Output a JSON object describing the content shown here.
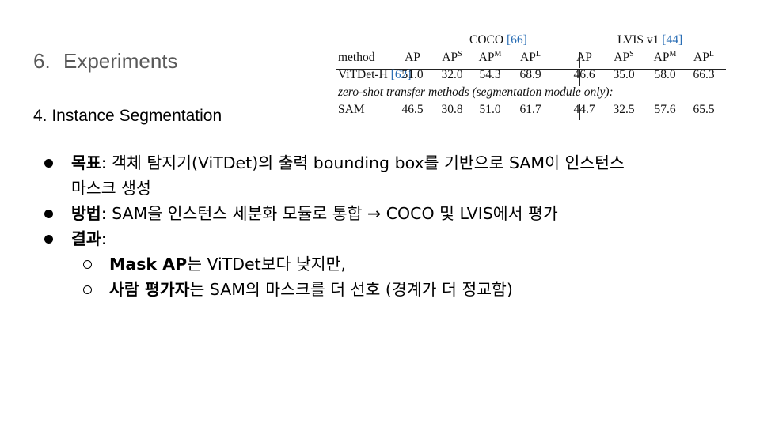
{
  "heading": {
    "number": "6.",
    "title": "Experiments"
  },
  "subheading": "4. Instance Segmentation",
  "table": {
    "group_coco": "COCO",
    "group_coco_cite": "[66]",
    "group_lvis": "LVIS v1",
    "group_lvis_cite": "[44]",
    "method_header": "method",
    "metric_base": "AP",
    "metric_sups": [
      "",
      "S",
      "M",
      "L"
    ],
    "rows": [
      {
        "method": "ViTDet-H",
        "cite": "[62]",
        "coco": [
          "51.0",
          "32.0",
          "54.3",
          "68.9"
        ],
        "lvis": [
          "46.6",
          "35.0",
          "58.0",
          "66.3"
        ]
      }
    ],
    "section_note": "zero-shot transfer methods (segmentation module only):",
    "zero_shot_rows": [
      {
        "method": "SAM",
        "coco": [
          "46.5",
          "30.8",
          "51.0",
          "61.7"
        ],
        "lvis": [
          "44.7",
          "32.5",
          "57.6",
          "65.5"
        ]
      }
    ]
  },
  "bullets": {
    "goal_label": "목표",
    "goal_text": ": 객체 탐지기(ViTDet)의 출력 bounding box를 기반으로 SAM이 인스턴스",
    "goal_text_cont": "마스크 생성",
    "method_label": "방법",
    "method_text": ": SAM을 인스턴스 세분화 모듈로 통합 → COCO 및 LVIS에서 평가",
    "result_label": "결과",
    "result_text": ":",
    "sub1_label": "Mask AP",
    "sub1_text": "는 ViTDet보다 낮지만,",
    "sub2_label": "사람 평가자",
    "sub2_text": "는 SAM의 마스크를 더 선호 (경계가 더 정교함)"
  }
}
